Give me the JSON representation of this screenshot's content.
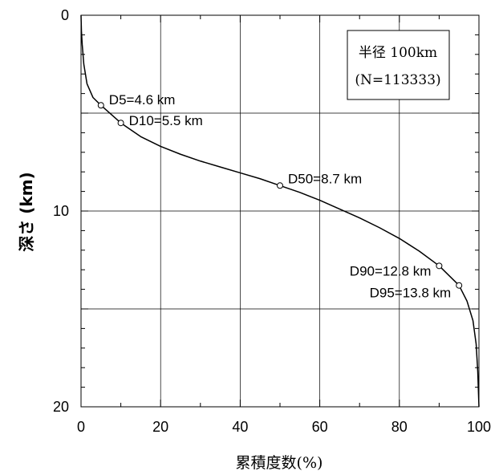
{
  "chart_data": {
    "type": "line",
    "xlabel": "累積度数(%)",
    "ylabel": "深さ (km)",
    "xlim": [
      0,
      100
    ],
    "ylim": [
      0,
      20
    ],
    "y_inverted": true,
    "grid": true,
    "x_ticks": [
      0,
      20,
      40,
      60,
      80,
      100
    ],
    "y_ticks": [
      0,
      10,
      20
    ],
    "legend": {
      "line1": "半径 100km",
      "line2": "(N=113333)",
      "position": "top-right"
    },
    "series": [
      {
        "x": [
          0,
          0.1,
          0.3,
          0.7,
          1.5,
          3,
          5,
          10,
          15,
          20,
          25,
          30,
          35,
          40,
          45,
          50,
          55,
          60,
          65,
          70,
          75,
          80,
          85,
          90,
          95,
          97,
          98.5,
          99.3,
          99.7,
          100
        ],
        "y": [
          0,
          0.8,
          1.5,
          2.5,
          3.5,
          4.2,
          4.6,
          5.5,
          6.2,
          6.7,
          7.1,
          7.45,
          7.75,
          8.05,
          8.35,
          8.7,
          9.05,
          9.45,
          9.9,
          10.35,
          10.85,
          11.4,
          12.05,
          12.8,
          13.8,
          14.6,
          15.6,
          16.8,
          18.2,
          20
        ]
      }
    ],
    "annotations": [
      {
        "label": "D5=4.6 km",
        "x": 5,
        "y": 4.6
      },
      {
        "label": "D10=5.5 km",
        "x": 10,
        "y": 5.5
      },
      {
        "label": "D50=8.7 km",
        "x": 50,
        "y": 8.7
      },
      {
        "label": "D90=12.8 km",
        "x": 90,
        "y": 12.8
      },
      {
        "label": "D95=13.8 km",
        "x": 95,
        "y": 13.8
      }
    ]
  }
}
